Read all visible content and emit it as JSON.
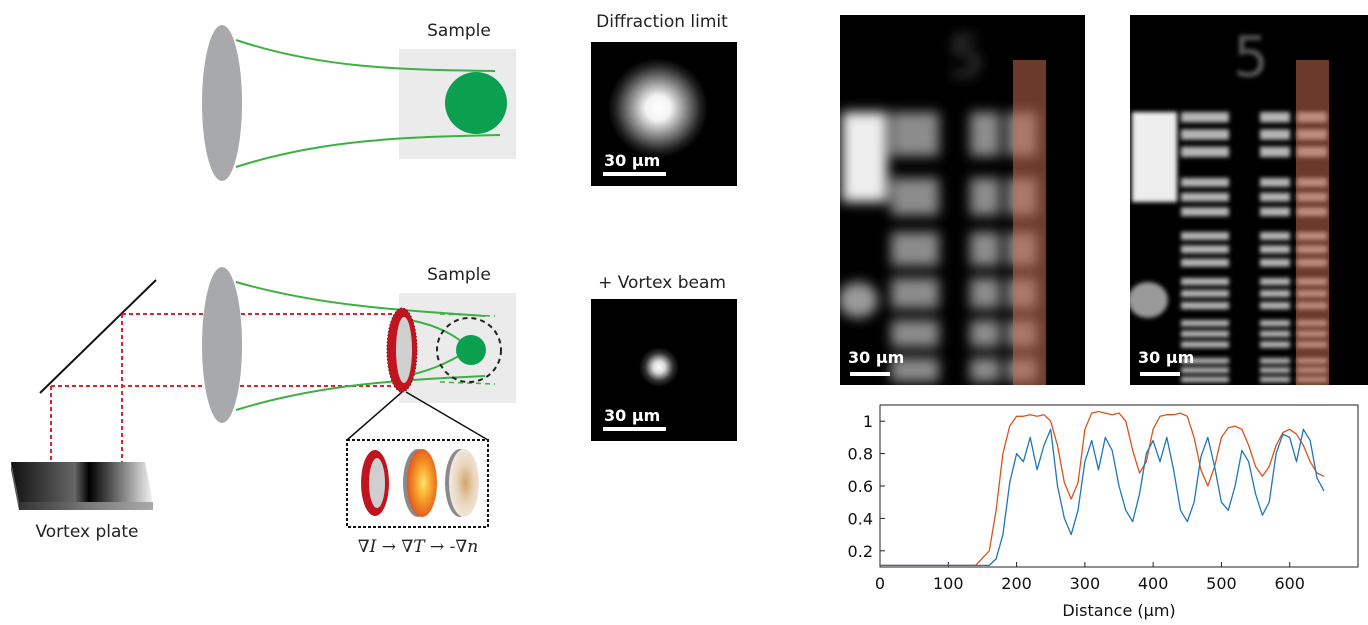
{
  "panel_top": {
    "sample_label": "Sample",
    "image_title": "Diffraction limit",
    "scalebar_label": "30 µm"
  },
  "panel_bottom": {
    "sample_label": "Sample",
    "image_title": "+ Vortex beam",
    "scalebar_label": "30 µm",
    "plate_label": "Vortex plate",
    "formula": "∇I → ∇T → -∇n"
  },
  "micrographs": {
    "left_scalebar_label": "30 µm",
    "right_scalebar_label": "30 µm",
    "group_label": "5"
  },
  "colors": {
    "beam_green": "#3cb043",
    "sample_green": "#0aa050",
    "lens_gray": "#a7a9ac",
    "laser_red": "#e0202a",
    "ring_red": "#c0141e",
    "series_orange": "#d9531e",
    "series_blue": "#1f77b4"
  },
  "chart_data": {
    "type": "line",
    "xlabel": "Distance (µm)",
    "ylabel": "",
    "xlim": [
      0,
      700
    ],
    "ylim": [
      0.1,
      1.1
    ],
    "xticks": [
      0,
      100,
      200,
      300,
      400,
      500,
      600
    ],
    "yticks": [
      0.2,
      0.4,
      0.6,
      0.8,
      1
    ],
    "x": [
      0,
      50,
      100,
      140,
      160,
      170,
      180,
      190,
      200,
      210,
      220,
      230,
      240,
      250,
      260,
      270,
      280,
      290,
      300,
      310,
      320,
      330,
      340,
      350,
      360,
      370,
      380,
      390,
      400,
      410,
      420,
      430,
      440,
      450,
      460,
      470,
      480,
      490,
      500,
      510,
      520,
      530,
      540,
      550,
      560,
      570,
      580,
      590,
      600,
      610,
      620,
      630,
      640,
      650
    ],
    "series": [
      {
        "values": [
          0.11,
          0.11,
          0.11,
          0.11,
          0.2,
          0.45,
          0.8,
          0.97,
          1.03,
          1.03,
          1.04,
          1.03,
          1.04,
          1.0,
          0.85,
          0.62,
          0.52,
          0.62,
          0.95,
          1.05,
          1.06,
          1.05,
          1.04,
          1.05,
          1.0,
          0.82,
          0.68,
          0.75,
          0.95,
          1.03,
          1.04,
          1.04,
          1.05,
          1.03,
          0.9,
          0.7,
          0.6,
          0.72,
          0.9,
          0.96,
          0.97,
          0.95,
          0.85,
          0.72,
          0.66,
          0.72,
          0.85,
          0.93,
          0.95,
          0.92,
          0.85,
          0.75,
          0.68,
          0.66
        ]
      },
      {
        "values": [
          0.11,
          0.11,
          0.11,
          0.11,
          0.11,
          0.15,
          0.3,
          0.62,
          0.8,
          0.75,
          0.9,
          0.7,
          0.85,
          0.95,
          0.6,
          0.4,
          0.3,
          0.45,
          0.75,
          0.88,
          0.7,
          0.9,
          0.82,
          0.6,
          0.45,
          0.38,
          0.55,
          0.8,
          0.88,
          0.75,
          0.9,
          0.7,
          0.45,
          0.38,
          0.5,
          0.78,
          0.9,
          0.72,
          0.5,
          0.45,
          0.6,
          0.82,
          0.75,
          0.55,
          0.42,
          0.5,
          0.8,
          0.92,
          0.9,
          0.75,
          0.95,
          0.88,
          0.65,
          0.57
        ]
      }
    ]
  }
}
